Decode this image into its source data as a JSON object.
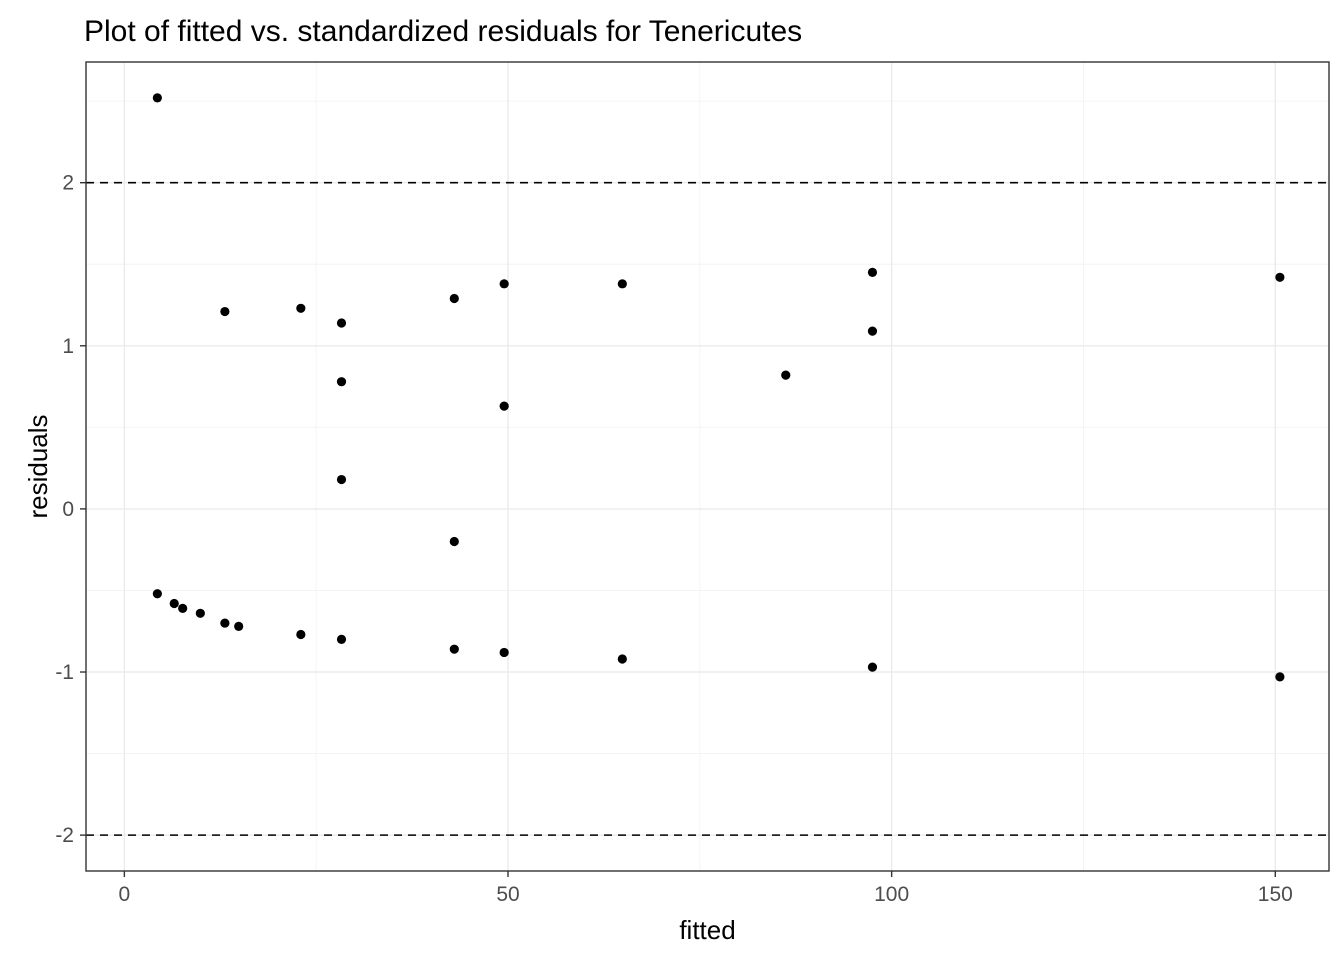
{
  "chart_data": {
    "type": "scatter",
    "title": "Plot of fitted vs. standardized residuals for Tenericutes",
    "xlabel": "fitted",
    "ylabel": "residuals",
    "xlim": [
      -5,
      157
    ],
    "ylim": [
      -2.22,
      2.74
    ],
    "x_ticks": [
      0,
      50,
      100,
      150
    ],
    "y_ticks": [
      -2,
      -1,
      0,
      1,
      2
    ],
    "x_tick_labels": [
      "0",
      "50",
      "100",
      "150"
    ],
    "y_tick_labels": [
      "-2",
      "-1",
      "0",
      "1",
      "2"
    ],
    "x_minor_ticks": [
      25,
      75,
      125
    ],
    "y_minor_ticks": [
      -1.5,
      -0.5,
      0.5,
      1.5,
      2.5
    ],
    "reference_lines": [
      2,
      -2
    ],
    "grid": true,
    "theme": "bw",
    "point_color": "#000000",
    "points": [
      {
        "x": 4.3,
        "y": 2.52
      },
      {
        "x": 13.1,
        "y": 1.21
      },
      {
        "x": 23.0,
        "y": 1.23
      },
      {
        "x": 28.3,
        "y": 1.14
      },
      {
        "x": 43.0,
        "y": 1.29
      },
      {
        "x": 49.5,
        "y": 1.38
      },
      {
        "x": 64.9,
        "y": 1.38
      },
      {
        "x": 97.5,
        "y": 1.45
      },
      {
        "x": 150.6,
        "y": 1.42
      },
      {
        "x": 28.3,
        "y": 0.78
      },
      {
        "x": 49.5,
        "y": 0.63
      },
      {
        "x": 86.2,
        "y": 0.82
      },
      {
        "x": 97.5,
        "y": 1.09
      },
      {
        "x": 28.3,
        "y": 0.18
      },
      {
        "x": 43.0,
        "y": -0.2
      },
      {
        "x": 4.3,
        "y": -0.52
      },
      {
        "x": 6.5,
        "y": -0.58
      },
      {
        "x": 7.6,
        "y": -0.61
      },
      {
        "x": 9.9,
        "y": -0.64
      },
      {
        "x": 13.1,
        "y": -0.7
      },
      {
        "x": 14.9,
        "y": -0.72
      },
      {
        "x": 23.0,
        "y": -0.77
      },
      {
        "x": 28.3,
        "y": -0.8
      },
      {
        "x": 43.0,
        "y": -0.86
      },
      {
        "x": 49.5,
        "y": -0.88
      },
      {
        "x": 64.9,
        "y": -0.92
      },
      {
        "x": 97.5,
        "y": -0.97
      },
      {
        "x": 150.6,
        "y": -1.03
      }
    ]
  }
}
